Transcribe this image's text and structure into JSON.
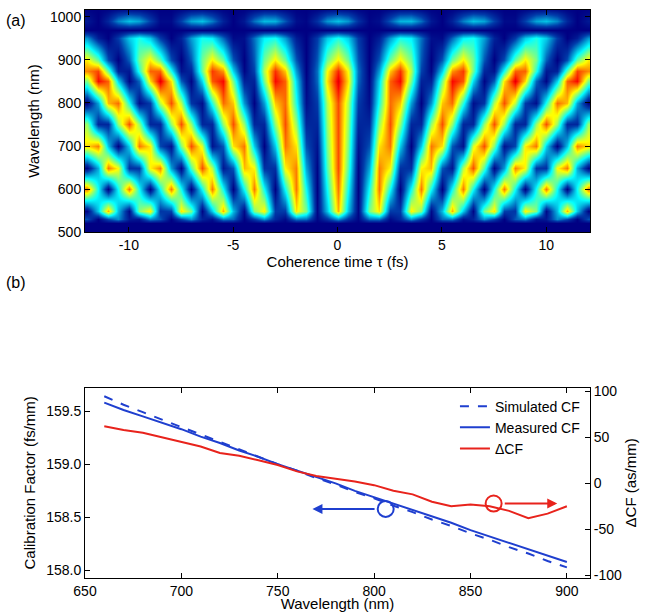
{
  "chart_data": [
    {
      "type": "heatmap",
      "panel_label": "(a)",
      "xlabel": "Coherence time τ (fs)",
      "ylabel": "Wavelength (nm)",
      "xlim": [
        -12.1,
        12.1
      ],
      "xticks": [
        -10,
        -5,
        0,
        5,
        10
      ],
      "ylim": [
        500,
        1016
      ],
      "yticks": [
        500,
        600,
        700,
        800,
        900,
        1000
      ],
      "grid": false,
      "color": "Jet",
      "zlim": [
        0,
        1
      ],
      "x": [
        -12,
        -11.5,
        -11,
        -10.5,
        -10,
        -9.5,
        -9,
        -8.5,
        -8,
        -7.5,
        -7,
        -6.5,
        -6,
        -5.5,
        -5,
        -4.5,
        -4,
        -3.5,
        -3,
        -2.5,
        -2,
        -1.5,
        -1,
        -0.5,
        0,
        0.5,
        1,
        1.5,
        2,
        2.5,
        3,
        3.5,
        4,
        4.5,
        5,
        5.5,
        6,
        6.5,
        7,
        7.5,
        8,
        8.5,
        9,
        9.5,
        10,
        10.5,
        11,
        11.5,
        12
      ],
      "y": [
        500,
        520,
        530,
        550,
        600,
        650,
        700,
        750,
        800,
        850,
        875,
        900,
        950,
        970,
        990,
        1020
      ],
      "z": [
        [
          0,
          0,
          0,
          0,
          0,
          0,
          0,
          0,
          0,
          0,
          0,
          0,
          0,
          0,
          0,
          0,
          0,
          0,
          0,
          0,
          0,
          0,
          0,
          0,
          0,
          0,
          0,
          0,
          0,
          0,
          0,
          0,
          0,
          0,
          0,
          0,
          0,
          0,
          0,
          0,
          0,
          0,
          0,
          0,
          0,
          0,
          0,
          0,
          0
        ],
        [
          0,
          0,
          0,
          0,
          0,
          0,
          0,
          0,
          0,
          0,
          0,
          0,
          0,
          0,
          0,
          0,
          0,
          0,
          0,
          0,
          0,
          0,
          0,
          0,
          0,
          0,
          0,
          0,
          0,
          0,
          0,
          0,
          0,
          0,
          0,
          0,
          0,
          0,
          0,
          0,
          0,
          0,
          0,
          0,
          0,
          0,
          0,
          0,
          0
        ],
        [
          0.15,
          0,
          0.14,
          0.23,
          0.05,
          0.04,
          0.22,
          0.16,
          0,
          0.13,
          0.24,
          0.07,
          0.03,
          0.21,
          0.18,
          0,
          0.11,
          0.24,
          0.08,
          0.02,
          0.2,
          0.19,
          0.01,
          0.1,
          0.24,
          0.1,
          0.01,
          0.19,
          0.2,
          0.02,
          0.08,
          0.24,
          0.11,
          0,
          0.18,
          0.21,
          0.03,
          0.07,
          0.24,
          0.13,
          0,
          0.16,
          0.22,
          0.04,
          0.05,
          0.23,
          0.14,
          0,
          0.15
        ],
        [
          0.01,
          0.31,
          0.7,
          0.29,
          0.02,
          0.5,
          0.64,
          0.11,
          0.13,
          0.65,
          0.49,
          0.01,
          0.31,
          0.7,
          0.29,
          0.02,
          0.5,
          0.64,
          0.12,
          0.12,
          0.65,
          0.49,
          0.01,
          0.3,
          0.7,
          0.3,
          0.01,
          0.49,
          0.65,
          0.12,
          0.12,
          0.64,
          0.5,
          0.02,
          0.29,
          0.7,
          0.31,
          0.01,
          0.49,
          0.65,
          0.13,
          0.11,
          0.64,
          0.5,
          0.02,
          0.29,
          0.7,
          0.31,
          0.01
        ],
        [
          0.76,
          0.38,
          0,
          0.38,
          0.76,
          0.38,
          0,
          0.38,
          0.76,
          0.38,
          0,
          0.38,
          0.76,
          0.38,
          0,
          0.38,
          0.76,
          0.38,
          0,
          0.38,
          0.76,
          0.38,
          0,
          0.38,
          0.76,
          0.38,
          0,
          0.38,
          0.76,
          0.38,
          0,
          0.38,
          0.76,
          0.38,
          0,
          0.38,
          0.76,
          0.38,
          0,
          0.38,
          0.76,
          0.38,
          0,
          0.38,
          0.76,
          0.38,
          0,
          0.38,
          0.76
        ],
        [
          0.01,
          0.27,
          0.76,
          0.62,
          0.1,
          0.11,
          0.63,
          0.75,
          0.25,
          0.01,
          0.45,
          0.8,
          0.55,
          0.05,
          0.16,
          0.69,
          0.63,
          0.1,
          0.1,
          0.63,
          0.75,
          0.26,
          0.01,
          0.45,
          0.8,
          0.45,
          0.01,
          0.26,
          0.75,
          0.63,
          0.1,
          0.1,
          0.63,
          0.69,
          0.16,
          0.05,
          0.55,
          0.8,
          0.45,
          0.01,
          0.25,
          0.75,
          0.63,
          0.11,
          0.1,
          0.62,
          0.76,
          0.27,
          0.01
        ],
        [
          0.66,
          0.75,
          0.3,
          0,
          0.32,
          0.76,
          0.64,
          0.14,
          0.04,
          0.5,
          0.8,
          0.59,
          0.04,
          0.16,
          0.65,
          0.76,
          0.31,
          0,
          0.31,
          0.76,
          0.65,
          0.15,
          0.04,
          0.49,
          0.8,
          0.49,
          0.04,
          0.15,
          0.65,
          0.76,
          0.31,
          0,
          0.31,
          0.76,
          0.65,
          0.16,
          0.04,
          0.59,
          0.8,
          0.5,
          0.04,
          0.14,
          0.64,
          0.76,
          0.32,
          0,
          0.3,
          0.75,
          0.66
        ],
        [
          0.52,
          0.08,
          0.08,
          0.52,
          0.8,
          0.52,
          0.08,
          0.08,
          0.52,
          0.8,
          0.52,
          0.08,
          0.08,
          0.52,
          0.8,
          0.52,
          0.08,
          0.08,
          0.52,
          0.8,
          0.52,
          0.08,
          0.08,
          0.52,
          0.8,
          0.52,
          0.08,
          0.08,
          0.52,
          0.8,
          0.52,
          0.08,
          0.08,
          0.52,
          0.8,
          0.52,
          0.08,
          0.08,
          0.52,
          0.8,
          0.52,
          0.08,
          0.08,
          0.52,
          0.8,
          0.52,
          0.08,
          0.08,
          0.52
        ],
        [
          0,
          0.26,
          0.69,
          0.77,
          0.39,
          0.03,
          0.12,
          0.56,
          0.8,
          0.55,
          0.11,
          0.03,
          0.41,
          0.77,
          0.68,
          0.24,
          0,
          0.25,
          0.68,
          0.77,
          0.4,
          0.03,
          0.12,
          0.55,
          0.8,
          0.55,
          0.12,
          0.03,
          0.4,
          0.77,
          0.68,
          0.25,
          0,
          0.24,
          0.68,
          0.77,
          0.41,
          0.03,
          0.11,
          0.55,
          0.8,
          0.56,
          0.12,
          0.03,
          0.39,
          0.77,
          0.69,
          0.26,
          0
        ],
        [
          0.5,
          0.87,
          0.78,
          0.32,
          0.01,
          0.18,
          0.66,
          0.9,
          0.65,
          0.17,
          0.01,
          0.33,
          0.79,
          0.87,
          0.49,
          0.07,
          0.07,
          0.49,
          0.87,
          0.78,
          0.33,
          0.01,
          0.18,
          0.65,
          0.9,
          0.65,
          0.18,
          0.01,
          0.33,
          0.78,
          0.87,
          0.49,
          0.07,
          0.07,
          0.49,
          0.87,
          0.79,
          0.33,
          0.01,
          0.17,
          0.65,
          0.9,
          0.66,
          0.18,
          0.01,
          0.32,
          0.78,
          0.87,
          0.5
        ],
        [
          0.74,
          0.81,
          0.47,
          0.07,
          0.05,
          0.41,
          0.78,
          0.78,
          0.39,
          0.04,
          0.08,
          0.48,
          0.82,
          0.73,
          0.32,
          0.01,
          0.13,
          0.55,
          0.83,
          0.68,
          0.25,
          0,
          0.19,
          0.62,
          0.84,
          0.62,
          0.19,
          0,
          0.25,
          0.68,
          0.83,
          0.55,
          0.13,
          0.01,
          0.32,
          0.73,
          0.82,
          0.48,
          0.08,
          0.04,
          0.39,
          0.78,
          0.78,
          0.41,
          0.05,
          0.07,
          0.47,
          0.81,
          0.74
        ],
        [
          0.64,
          0.47,
          0.15,
          0,
          0.17,
          0.49,
          0.64,
          0.47,
          0.15,
          0,
          0.16,
          0.48,
          0.64,
          0.48,
          0.16,
          0,
          0.16,
          0.48,
          0.64,
          0.48,
          0.16,
          0,
          0.16,
          0.48,
          0.64,
          0.48,
          0.16,
          0,
          0.16,
          0.48,
          0.64,
          0.48,
          0.16,
          0,
          0.16,
          0.48,
          0.64,
          0.48,
          0.16,
          0,
          0.15,
          0.47,
          0.64,
          0.49,
          0.17,
          0,
          0.15,
          0.47,
          0.64
        ],
        [
          0.24,
          0.06,
          0,
          0.12,
          0.31,
          0.4,
          0.31,
          0.12,
          0,
          0.07,
          0.25,
          0.39,
          0.36,
          0.18,
          0.02,
          0.03,
          0.19,
          0.36,
          0.39,
          0.25,
          0.06,
          0,
          0.12,
          0.31,
          0.4,
          0.31,
          0.12,
          0,
          0.06,
          0.25,
          0.39,
          0.36,
          0.19,
          0.03,
          0.02,
          0.18,
          0.36,
          0.39,
          0.25,
          0.07,
          0,
          0.12,
          0.31,
          0.4,
          0.31,
          0.12,
          0,
          0.06,
          0.24
        ],
        [
          0,
          0,
          0,
          0,
          0,
          0,
          0,
          0,
          0,
          0,
          0,
          0,
          0,
          0,
          0,
          0,
          0,
          0,
          0,
          0,
          0,
          0,
          0,
          0,
          0,
          0,
          0,
          0,
          0,
          0,
          0,
          0,
          0,
          0,
          0,
          0,
          0,
          0,
          0,
          0,
          0,
          0,
          0,
          0,
          0,
          0,
          0,
          0,
          0
        ],
        [
          0.05,
          0,
          0.08,
          0.22,
          0.3,
          0.26,
          0.13,
          0.02,
          0.02,
          0.13,
          0.26,
          0.3,
          0.21,
          0.07,
          0,
          0.05,
          0.19,
          0.29,
          0.28,
          0.16,
          0.03,
          0.01,
          0.1,
          0.24,
          0.3,
          0.24,
          0.1,
          0.01,
          0.03,
          0.16,
          0.28,
          0.29,
          0.19,
          0.05,
          0,
          0.07,
          0.21,
          0.3,
          0.26,
          0.13,
          0.02,
          0.02,
          0.13,
          0.26,
          0.3,
          0.22,
          0.08,
          0,
          0.05
        ],
        [
          0,
          0,
          0,
          0,
          0,
          0,
          0,
          0,
          0,
          0,
          0,
          0,
          0,
          0,
          0,
          0,
          0,
          0,
          0,
          0,
          0,
          0,
          0,
          0,
          0,
          0,
          0,
          0,
          0,
          0,
          0,
          0,
          0,
          0,
          0,
          0,
          0,
          0,
          0,
          0,
          0,
          0,
          0,
          0,
          0,
          0,
          0,
          0,
          0
        ]
      ]
    },
    {
      "type": "line",
      "panel_label": "(b)",
      "xlabel": "Wavelength (nm)",
      "ylabel": "Calibration Factor (fs/mm)",
      "y2label": "ΔCF (as/mm)",
      "xlim": [
        650,
        912
      ],
      "xticks": [
        650,
        700,
        750,
        800,
        850,
        900
      ],
      "ylim": [
        157.93,
        159.72
      ],
      "yticks": [
        {
          "value": 158,
          "label": "158.0"
        },
        158.5,
        {
          "value": 159,
          "label": "159.0"
        },
        159.5
      ],
      "y2lim": [
        -103,
        104
      ],
      "y2ticks": [
        -100,
        -50,
        0,
        50,
        100
      ],
      "grid": false,
      "legend": "upper right",
      "x": [
        660,
        670,
        680,
        690,
        700,
        710,
        720,
        730,
        740,
        750,
        760,
        770,
        780,
        790,
        800,
        810,
        820,
        830,
        840,
        850,
        860,
        870,
        880,
        890,
        900
      ],
      "series": [
        {
          "name": "Simulated CF",
          "color": "#1f3fcf",
          "line_style": "dash",
          "values": [
            159.64,
            159.56,
            159.49,
            159.42,
            159.35,
            159.28,
            159.21,
            159.14,
            159.07,
            159.0,
            158.94,
            158.87,
            158.81,
            158.74,
            158.68,
            158.61,
            158.55,
            158.48,
            158.42,
            158.35,
            158.29,
            158.22,
            158.16,
            158.09,
            158.03
          ]
        },
        {
          "name": "Measured CF",
          "color": "#1f3fcf",
          "line_style": "solid",
          "values": [
            159.58,
            159.51,
            159.45,
            159.39,
            159.33,
            159.26,
            159.2,
            159.13,
            159.07,
            159.0,
            158.94,
            158.88,
            158.82,
            158.75,
            158.69,
            158.63,
            158.57,
            158.51,
            158.45,
            158.38,
            158.32,
            158.26,
            158.2,
            158.14,
            158.08
          ]
        },
        {
          "name": "ΔCF",
          "color": "#e8231c",
          "line_style": "solid",
          "axis": "y2",
          "values": [
            62,
            58,
            55,
            50,
            45,
            40,
            33,
            30,
            25,
            20,
            13,
            8,
            5,
            2,
            -2,
            -8,
            -12,
            -20,
            -25,
            -23,
            -25,
            -30,
            -38,
            -33,
            -25
          ]
        }
      ]
    }
  ]
}
